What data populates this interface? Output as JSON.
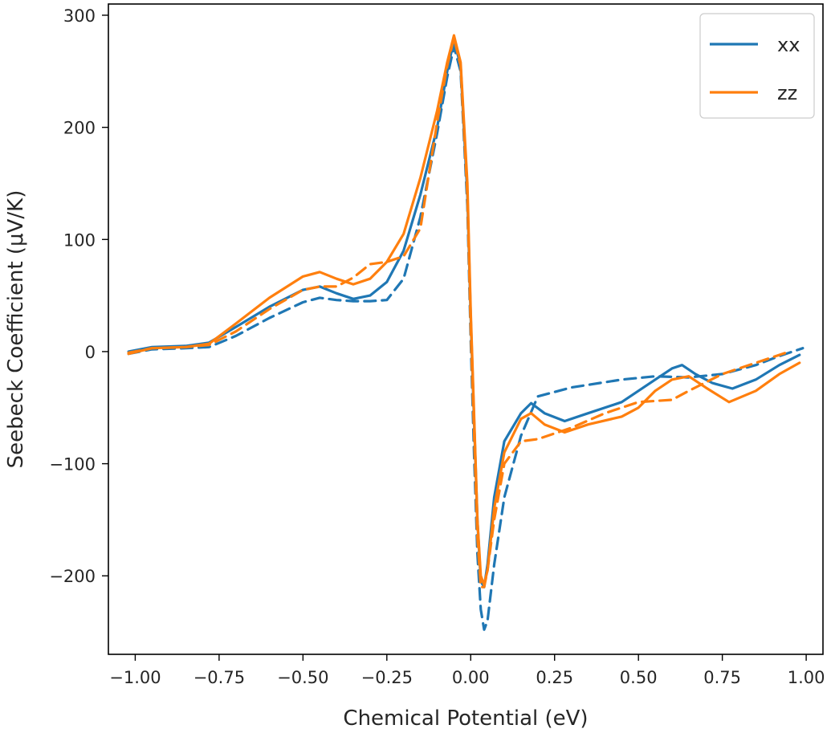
{
  "chart_data": {
    "type": "line",
    "title": "",
    "xlabel": "Chemical Potential (eV)",
    "ylabel": "Seebeck Coefficient (μV/K)",
    "xlim": [
      -1.08,
      1.05
    ],
    "ylim": [
      -270,
      310
    ],
    "xticks": [
      -1.0,
      -0.75,
      -0.5,
      -0.25,
      0.0,
      0.25,
      0.5,
      0.75,
      1.0
    ],
    "xtick_labels": [
      "−1.00",
      "−0.75",
      "−0.50",
      "−0.25",
      "0.00",
      "0.25",
      "0.50",
      "0.75",
      "1.00"
    ],
    "yticks": [
      -200,
      -100,
      0,
      100,
      200,
      300
    ],
    "ytick_labels": [
      "−200",
      "−100",
      "0",
      "100",
      "200",
      "300"
    ],
    "grid": false,
    "legend_position": "top-right",
    "legend": [
      {
        "label": "xx",
        "color": "#1f77b4"
      },
      {
        "label": "zz",
        "color": "#ff7f0e"
      }
    ],
    "series": [
      {
        "legend": "xx",
        "color": "#1f77b4",
        "linestyle": "solid",
        "x": [
          -1.02,
          -0.95,
          -0.85,
          -0.78,
          -0.7,
          -0.6,
          -0.5,
          -0.45,
          -0.4,
          -0.35,
          -0.3,
          -0.25,
          -0.2,
          -0.15,
          -0.1,
          -0.07,
          -0.05,
          -0.03,
          -0.01,
          0.0,
          0.01,
          0.02,
          0.03,
          0.04,
          0.05,
          0.07,
          0.1,
          0.15,
          0.18,
          0.22,
          0.28,
          0.35,
          0.45,
          0.55,
          0.6,
          0.63,
          0.67,
          0.72,
          0.78,
          0.85,
          0.92,
          0.98
        ],
        "y": [
          0,
          4,
          5,
          8,
          22,
          40,
          55,
          58,
          52,
          47,
          50,
          62,
          90,
          140,
          200,
          250,
          278,
          255,
          140,
          30,
          -60,
          -150,
          -205,
          -210,
          -190,
          -130,
          -80,
          -55,
          -46,
          -55,
          -62,
          -55,
          -45,
          -25,
          -15,
          -12,
          -20,
          -28,
          -33,
          -25,
          -12,
          -3
        ]
      },
      {
        "legend": "xx (dashed)",
        "color": "#1f77b4",
        "linestyle": "dashed",
        "x": [
          -1.02,
          -0.95,
          -0.85,
          -0.78,
          -0.7,
          -0.6,
          -0.5,
          -0.45,
          -0.4,
          -0.35,
          -0.3,
          -0.25,
          -0.2,
          -0.15,
          -0.1,
          -0.07,
          -0.05,
          -0.03,
          -0.01,
          0.0,
          0.01,
          0.02,
          0.03,
          0.04,
          0.05,
          0.07,
          0.1,
          0.15,
          0.2,
          0.3,
          0.45,
          0.55,
          0.65,
          0.75,
          0.85,
          0.92,
          0.99
        ],
        "y": [
          -2,
          2,
          3,
          4,
          14,
          30,
          44,
          48,
          46,
          45,
          45,
          46,
          65,
          120,
          195,
          245,
          272,
          250,
          130,
          10,
          -90,
          -180,
          -230,
          -248,
          -240,
          -190,
          -130,
          -75,
          -40,
          -32,
          -25,
          -22,
          -23,
          -20,
          -12,
          -4,
          3
        ]
      },
      {
        "legend": "zz",
        "color": "#ff7f0e",
        "linestyle": "solid",
        "x": [
          -1.02,
          -0.95,
          -0.85,
          -0.78,
          -0.7,
          -0.6,
          -0.5,
          -0.45,
          -0.4,
          -0.35,
          -0.3,
          -0.25,
          -0.2,
          -0.15,
          -0.1,
          -0.07,
          -0.05,
          -0.03,
          -0.01,
          0.0,
          0.01,
          0.02,
          0.03,
          0.04,
          0.05,
          0.07,
          0.1,
          0.15,
          0.18,
          0.22,
          0.28,
          0.35,
          0.45,
          0.5,
          0.55,
          0.6,
          0.65,
          0.7,
          0.77,
          0.85,
          0.92,
          0.98
        ],
        "y": [
          -2,
          3,
          4,
          7,
          25,
          48,
          67,
          71,
          65,
          60,
          65,
          80,
          105,
          155,
          215,
          258,
          282,
          258,
          150,
          35,
          -55,
          -150,
          -200,
          -208,
          -195,
          -140,
          -90,
          -60,
          -55,
          -65,
          -72,
          -65,
          -58,
          -50,
          -35,
          -25,
          -22,
          -32,
          -45,
          -35,
          -20,
          -10
        ]
      },
      {
        "legend": "zz (dashed)",
        "color": "#ff7f0e",
        "linestyle": "dashed",
        "x": [
          -1.02,
          -0.95,
          -0.85,
          -0.78,
          -0.7,
          -0.6,
          -0.5,
          -0.45,
          -0.4,
          -0.35,
          -0.3,
          -0.25,
          -0.2,
          -0.15,
          -0.1,
          -0.07,
          -0.05,
          -0.03,
          -0.01,
          0.0,
          0.01,
          0.02,
          0.03,
          0.04,
          0.05,
          0.07,
          0.1,
          0.15,
          0.2,
          0.3,
          0.4,
          0.5,
          0.6,
          0.65,
          0.75,
          0.85,
          0.95
        ],
        "y": [
          -1,
          3,
          4,
          6,
          18,
          38,
          55,
          58,
          58,
          66,
          78,
          80,
          85,
          110,
          205,
          255,
          280,
          255,
          140,
          20,
          -70,
          -165,
          -210,
          -210,
          -195,
          -150,
          -100,
          -80,
          -78,
          -68,
          -55,
          -45,
          -43,
          -35,
          -20,
          -10,
          0
        ]
      }
    ]
  }
}
